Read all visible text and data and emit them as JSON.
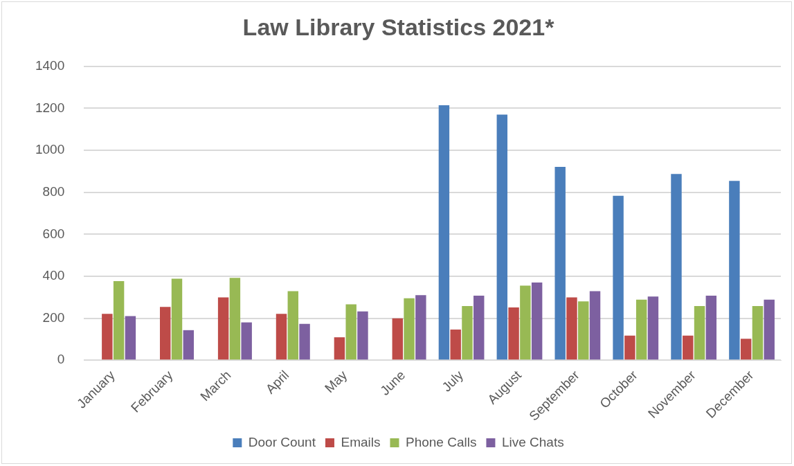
{
  "chart_data": {
    "type": "bar",
    "title": "Law Library Statistics 2021*",
    "categories": [
      "January",
      "February",
      "March",
      "April",
      "May",
      "June",
      "July",
      "August",
      "September",
      "October",
      "November",
      "December"
    ],
    "series": [
      {
        "name": "Door Count",
        "color": "#4a7ebb",
        "values": [
          null,
          null,
          null,
          null,
          null,
          null,
          1215,
          1170,
          921,
          783,
          887,
          854
        ]
      },
      {
        "name": "Emails",
        "color": "#be4b48",
        "values": [
          221,
          254,
          299,
          221,
          109,
          199,
          146,
          251,
          299,
          117,
          117,
          102
        ]
      },
      {
        "name": "Phone Calls",
        "color": "#98b954",
        "values": [
          377,
          388,
          392,
          329,
          266,
          295,
          258,
          355,
          280,
          288,
          258,
          258
        ]
      },
      {
        "name": "Live Chats",
        "color": "#7d60a0",
        "values": [
          210,
          143,
          180,
          173,
          232,
          310,
          307,
          370,
          329,
          303,
          307,
          288
        ]
      }
    ],
    "ylim": [
      0,
      1400
    ],
    "yticks": [
      0,
      200,
      400,
      600,
      800,
      1000,
      1200,
      1400
    ],
    "grid": "y",
    "legend": "bottom"
  }
}
